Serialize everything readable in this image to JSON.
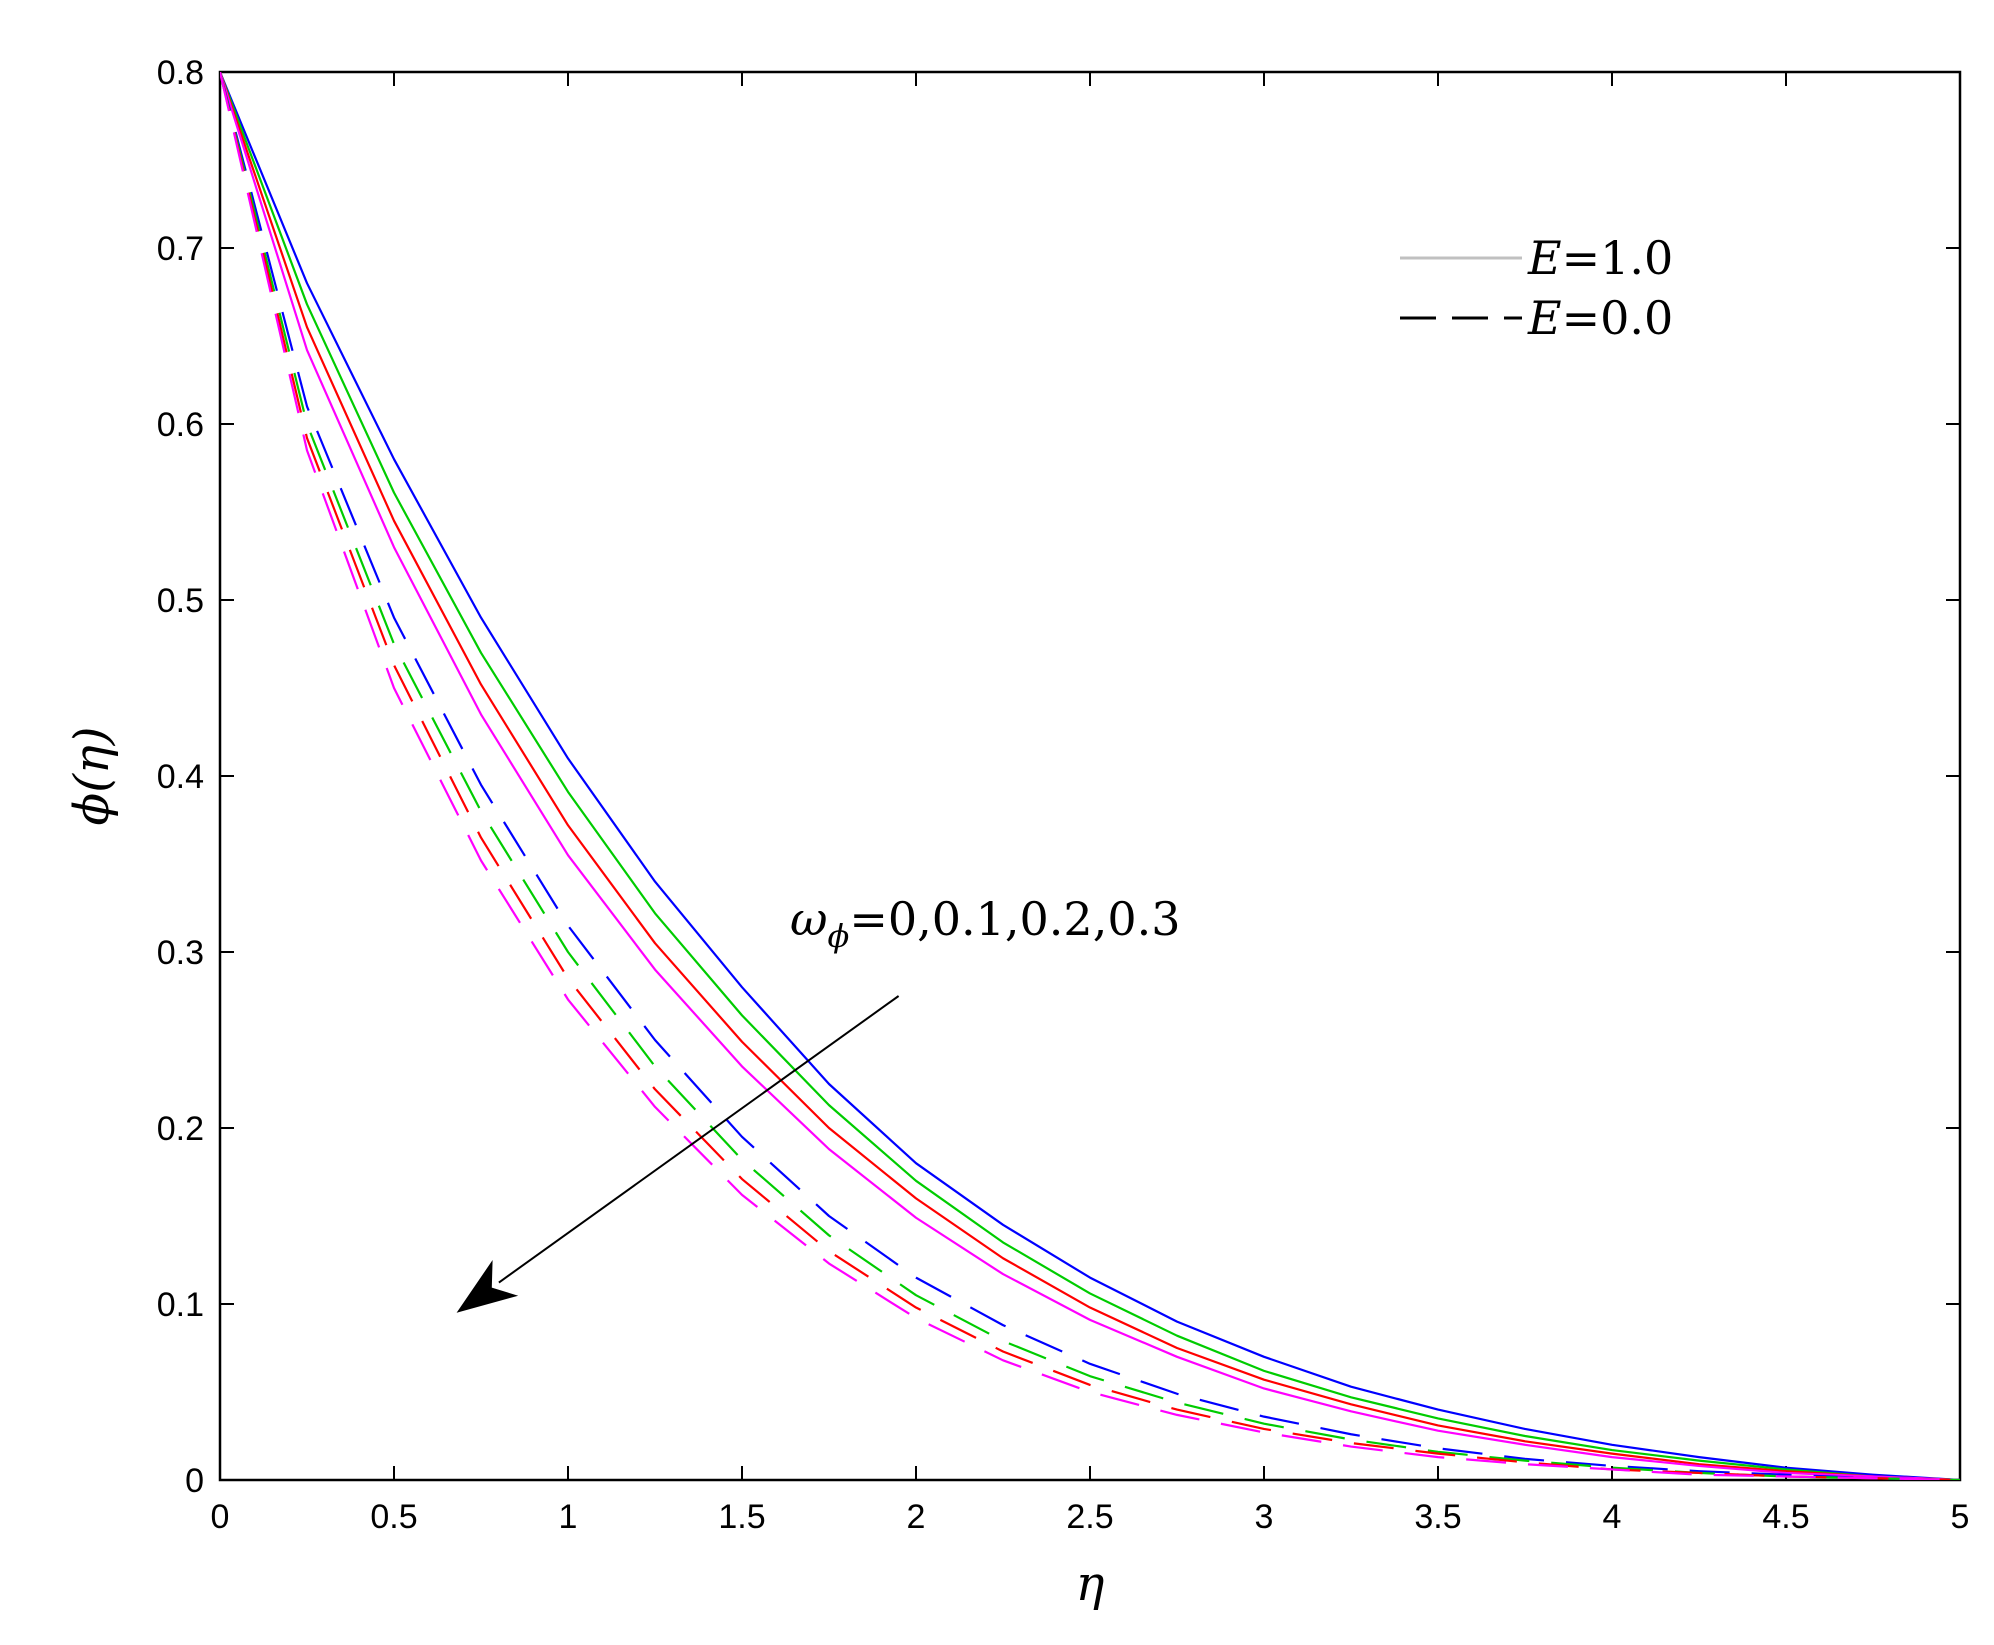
{
  "chart_data": {
    "type": "line",
    "xlabel": "η",
    "ylabel": "ϕ(η)",
    "xlim": [
      0,
      5
    ],
    "ylim": [
      0,
      0.8
    ],
    "xticks": [
      "0",
      "0.5",
      "1",
      "1.5",
      "2",
      "2.5",
      "3",
      "3.5",
      "4",
      "4.5",
      "5"
    ],
    "yticks": [
      "0",
      "0.1",
      "0.2",
      "0.3",
      "0.4",
      "0.5",
      "0.6",
      "0.7",
      "0.8"
    ],
    "grid": false,
    "legend_position": "top-right",
    "legend": [
      {
        "style": "solid",
        "var": "E",
        "value": "=1.0"
      },
      {
        "style": "dashed",
        "var": "E",
        "value": "=0.0"
      }
    ],
    "annotation": {
      "symbol": "ω",
      "subscript": "ϕ",
      "text": "=0,0.1,0.2,0.3",
      "arrow_from": [
        1.95,
        0.275
      ],
      "arrow_to": [
        0.68,
        0.095
      ]
    },
    "x": [
      0,
      0.25,
      0.5,
      0.75,
      1.0,
      1.25,
      1.5,
      1.75,
      2.0,
      2.25,
      2.5,
      2.75,
      3.0,
      3.25,
      3.5,
      3.75,
      4.0,
      4.25,
      4.5,
      4.75,
      5.0
    ],
    "series": [
      {
        "E": "1.0",
        "omega": "0",
        "color": "#0000ff",
        "dash": "solid",
        "values": [
          0.8,
          0.68,
          0.58,
          0.49,
          0.41,
          0.34,
          0.28,
          0.225,
          0.18,
          0.145,
          0.115,
          0.09,
          0.07,
          0.053,
          0.04,
          0.029,
          0.02,
          0.013,
          0.007,
          0.003,
          0.0
        ]
      },
      {
        "E": "1.0",
        "omega": "0.1",
        "color": "#00cc00",
        "dash": "solid",
        "values": [
          0.8,
          0.668,
          0.561,
          0.47,
          0.391,
          0.322,
          0.264,
          0.213,
          0.17,
          0.135,
          0.106,
          0.082,
          0.062,
          0.047,
          0.035,
          0.025,
          0.017,
          0.011,
          0.006,
          0.002,
          0.0
        ]
      },
      {
        "E": "1.0",
        "omega": "0.2",
        "color": "#ff0000",
        "dash": "solid",
        "values": [
          0.8,
          0.655,
          0.545,
          0.452,
          0.372,
          0.305,
          0.249,
          0.2,
          0.16,
          0.126,
          0.098,
          0.075,
          0.057,
          0.043,
          0.031,
          0.022,
          0.015,
          0.009,
          0.005,
          0.002,
          0.0
        ]
      },
      {
        "E": "1.0",
        "omega": "0.3",
        "color": "#ff00ff",
        "dash": "solid",
        "values": [
          0.8,
          0.642,
          0.53,
          0.435,
          0.355,
          0.29,
          0.235,
          0.188,
          0.149,
          0.117,
          0.091,
          0.07,
          0.052,
          0.039,
          0.028,
          0.02,
          0.013,
          0.008,
          0.004,
          0.002,
          0.0
        ]
      },
      {
        "E": "0.0",
        "omega": "0",
        "color": "#0000ff",
        "dash": "dashed",
        "values": [
          0.8,
          0.61,
          0.49,
          0.395,
          0.315,
          0.25,
          0.195,
          0.15,
          0.115,
          0.088,
          0.066,
          0.049,
          0.036,
          0.026,
          0.018,
          0.012,
          0.008,
          0.005,
          0.003,
          0.001,
          0.0
        ]
      },
      {
        "E": "0.0",
        "omega": "0.1",
        "color": "#00cc00",
        "dash": "dashed",
        "values": [
          0.8,
          0.6,
          0.475,
          0.38,
          0.3,
          0.235,
          0.182,
          0.139,
          0.105,
          0.079,
          0.059,
          0.044,
          0.032,
          0.023,
          0.016,
          0.011,
          0.007,
          0.004,
          0.002,
          0.001,
          0.0
        ]
      },
      {
        "E": "0.0",
        "omega": "0.2",
        "color": "#ff0000",
        "dash": "dashed",
        "values": [
          0.8,
          0.592,
          0.463,
          0.365,
          0.285,
          0.222,
          0.171,
          0.13,
          0.098,
          0.073,
          0.054,
          0.04,
          0.029,
          0.021,
          0.015,
          0.01,
          0.006,
          0.004,
          0.002,
          0.001,
          0.0
        ]
      },
      {
        "E": "0.0",
        "omega": "0.3",
        "color": "#ff00ff",
        "dash": "dashed",
        "values": [
          0.8,
          0.585,
          0.45,
          0.352,
          0.273,
          0.212,
          0.162,
          0.123,
          0.092,
          0.068,
          0.05,
          0.037,
          0.027,
          0.019,
          0.013,
          0.009,
          0.006,
          0.003,
          0.002,
          0.001,
          0.0
        ]
      }
    ]
  }
}
